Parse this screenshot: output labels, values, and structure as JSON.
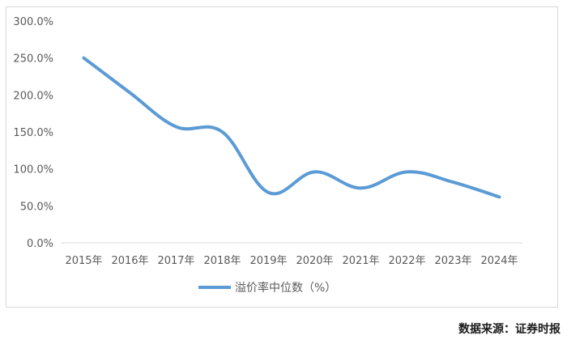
{
  "chart_data": {
    "type": "line",
    "categories": [
      "2015年",
      "2016年",
      "2017年",
      "2018年",
      "2019年",
      "2020年",
      "2021年",
      "2022年",
      "2023年",
      "2024年"
    ],
    "series": [
      {
        "name": "溢价率中位数（%）",
        "values": [
          250.0,
          203.0,
          157.0,
          150.0,
          68.0,
          96.0,
          74.0,
          96.0,
          82.0,
          62.0
        ],
        "color": "#5b9bd5"
      }
    ],
    "yticks": [
      "0.0%",
      "50.0%",
      "100.0%",
      "150.0%",
      "200.0%",
      "250.0%",
      "300.0%"
    ],
    "ylim": [
      0,
      300
    ],
    "legend_position": "bottom-center"
  },
  "source_text": "数据来源：证券时报"
}
